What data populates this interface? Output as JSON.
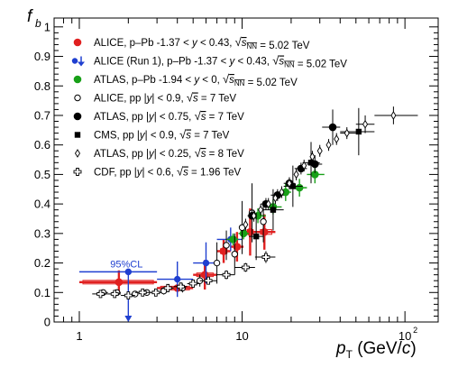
{
  "chart_data": {
    "type": "scatter",
    "xscale": "log",
    "xlim": [
      0.7,
      160
    ],
    "ylim": [
      0,
      1.03
    ],
    "xlabel": {
      "main": "p",
      "sub": "T",
      "unit": " (GeV/",
      "italic": "c",
      "close": ")"
    },
    "ylabel": {
      "main": "f",
      "sub": "b"
    },
    "xticks_major": [
      {
        "value": 1,
        "label": "1"
      },
      {
        "value": 10,
        "label": "10"
      },
      {
        "value": 100,
        "label": "10",
        "sup": "2"
      }
    ],
    "yticks": [
      {
        "value": 0,
        "label": "0"
      },
      {
        "value": 0.1,
        "label": "0.1"
      },
      {
        "value": 0.2,
        "label": "0.2"
      },
      {
        "value": 0.3,
        "label": "0.3"
      },
      {
        "value": 0.4,
        "label": "0.4"
      },
      {
        "value": 0.5,
        "label": "0.5"
      },
      {
        "value": 0.6,
        "label": "0.6"
      },
      {
        "value": 0.7,
        "label": "0.7"
      },
      {
        "value": 0.8,
        "label": "0.8"
      },
      {
        "value": 0.9,
        "label": "0.9"
      },
      {
        "value": 1,
        "label": "1"
      }
    ],
    "annotation": {
      "text": "95%CL"
    },
    "legend": {
      "placement": "top-left",
      "entries": [
        {
          "marker": "filled-circle",
          "color": "#e02020",
          "parts": [
            {
              "t": "ALICE, p–Pb  -1.37 < "
            },
            {
              "t": "y",
              "i": true
            },
            {
              "t": " < 0.43, "
            },
            {
              "t": "√",
              "sqrt": true
            },
            {
              "t": "s",
              "i": true,
              "o": true
            },
            {
              "t": "NN",
              "sub": true,
              "o": true
            },
            {
              "t": " = 5.02 TeV"
            }
          ]
        },
        {
          "marker": "circle-arrow",
          "color": "#1f3fd0",
          "parts": [
            {
              "t": "ALICE (Run 1), p–Pb  -1.37 < "
            },
            {
              "t": "y",
              "i": true
            },
            {
              "t": " < 0.43, "
            },
            {
              "t": "√",
              "sqrt": true
            },
            {
              "t": "s",
              "i": true,
              "o": true
            },
            {
              "t": "NN",
              "sub": true,
              "o": true
            },
            {
              "t": " = 5.02 TeV"
            }
          ]
        },
        {
          "marker": "filled-circle",
          "color": "#18a018",
          "parts": [
            {
              "t": "ATLAS, p–Pb  -1.94 < "
            },
            {
              "t": "y",
              "i": true
            },
            {
              "t": " < 0, "
            },
            {
              "t": "√",
              "sqrt": true
            },
            {
              "t": "s",
              "i": true,
              "o": true
            },
            {
              "t": "NN",
              "sub": true,
              "o": true
            },
            {
              "t": " = 5.02 TeV"
            }
          ]
        },
        {
          "marker": "open-circle",
          "color": "#000000",
          "parts": [
            {
              "t": "ALICE, pp  |"
            },
            {
              "t": "y",
              "i": true
            },
            {
              "t": "| < 0.9, "
            },
            {
              "t": "√",
              "sqrt": true
            },
            {
              "t": "s",
              "i": true,
              "o": true
            },
            {
              "t": " = 7 TeV"
            }
          ]
        },
        {
          "marker": "filled-circle",
          "color": "#000000",
          "parts": [
            {
              "t": "ATLAS, pp  |"
            },
            {
              "t": "y",
              "i": true
            },
            {
              "t": "| < 0.75, "
            },
            {
              "t": "√",
              "sqrt": true
            },
            {
              "t": "s",
              "i": true,
              "o": true
            },
            {
              "t": " = 7 TeV"
            }
          ]
        },
        {
          "marker": "filled-square",
          "color": "#000000",
          "parts": [
            {
              "t": "CMS, pp  |"
            },
            {
              "t": "y",
              "i": true
            },
            {
              "t": "| < 0.9, "
            },
            {
              "t": "√",
              "sqrt": true
            },
            {
              "t": "s",
              "i": true,
              "o": true
            },
            {
              "t": " = 7 TeV"
            }
          ]
        },
        {
          "marker": "open-diamond",
          "color": "#000000",
          "parts": [
            {
              "t": "ATLAS, pp  |"
            },
            {
              "t": "y",
              "i": true
            },
            {
              "t": "| < 0.25, "
            },
            {
              "t": "√",
              "sqrt": true
            },
            {
              "t": "s",
              "i": true,
              "o": true
            },
            {
              "t": " = 8 TeV"
            }
          ]
        },
        {
          "marker": "open-cross",
          "color": "#000000",
          "parts": [
            {
              "t": "CDF, pp  |"
            },
            {
              "t": "y",
              "i": true
            },
            {
              "t": "| < 0.6, "
            },
            {
              "t": "√",
              "sqrt": true
            },
            {
              "t": "s",
              "i": true,
              "o": true
            },
            {
              "t": " = 1.96 TeV"
            }
          ]
        }
      ]
    },
    "series": [
      {
        "marker": "filled-circle",
        "color": "#e02020",
        "points": [
          {
            "x": 1.75,
            "xerr": [
              1.0,
              3.0
            ],
            "y": 0.135,
            "yerr": 0.04,
            "sys": 0.006
          },
          {
            "x": 4.0,
            "xerr": [
              3.0,
              5.0
            ],
            "y": 0.115,
            "yerr": 0.01,
            "sys": 0.006
          },
          {
            "x": 5.9,
            "xerr": [
              5.0,
              7.0
            ],
            "y": 0.16,
            "yerr": 0.05,
            "sys": 0.006
          },
          {
            "x": 7.7,
            "xerr": [
              7.0,
              8.5
            ],
            "y": 0.24,
            "yerr": 0.04,
            "sys": 0.008
          },
          {
            "x": 9.3,
            "xerr": [
              8.5,
              10.2
            ],
            "y": 0.255,
            "yerr": 0.05,
            "sys": 0.008
          },
          {
            "x": 11.2,
            "xerr": [
              10.2,
              12.3
            ],
            "y": 0.305,
            "yerr": 0.08,
            "sys": 0.008
          },
          {
            "x": 13.7,
            "xerr": [
              12.3,
              16.0
            ],
            "y": 0.305,
            "yerr": 0.06,
            "sys": 0.008
          }
        ]
      },
      {
        "marker": "circle-arrow",
        "color": "#1f3fd0",
        "points": [
          {
            "x": 2.0,
            "xerr": [
              1.0,
              3.0
            ],
            "y": 0.17,
            "yerr": 0,
            "limit": 0.0
          },
          {
            "x": 4.0,
            "xerr": [
              3.0,
              5.0
            ],
            "y": 0.145,
            "yerr": 0.06
          },
          {
            "x": 6.0,
            "xerr": [
              5.0,
              7.0
            ],
            "y": 0.2,
            "yerr": 0.07
          },
          {
            "x": 8.5,
            "xerr": [
              7.0,
              10.0
            ],
            "y": 0.28,
            "yerr": 0.04
          }
        ]
      },
      {
        "marker": "filled-circle",
        "color": "#18a018",
        "points": [
          {
            "x": 8.8,
            "xerr": [
              8.0,
              9.5
            ],
            "y": 0.28,
            "yerr": 0.02
          },
          {
            "x": 10.2,
            "xerr": [
              9.5,
              11.0
            ],
            "y": 0.3,
            "yerr": 0.02
          },
          {
            "x": 12.5,
            "xerr": [
              11.0,
              14.0
            ],
            "y": 0.36,
            "yerr": 0.025
          },
          {
            "x": 15.5,
            "xerr": [
              14.0,
              17.5
            ],
            "y": 0.39,
            "yerr": 0.025
          },
          {
            "x": 18.5,
            "xerr": [
              17.5,
              20.0
            ],
            "y": 0.44,
            "yerr": 0.03
          },
          {
            "x": 22.5,
            "xerr": [
              20.0,
              25.0
            ],
            "y": 0.455,
            "yerr": 0.03
          },
          {
            "x": 28.0,
            "xerr": [
              25.0,
              32.0
            ],
            "y": 0.5,
            "yerr": 0.03
          }
        ]
      },
      {
        "marker": "open-circle",
        "color": "#000000",
        "points": [
          {
            "x": 1.4,
            "xerr": [
              1.3,
              1.5
            ],
            "y": 0.1,
            "yerr": 0.01
          },
          {
            "x": 1.7,
            "xerr": [
              1.6,
              1.8
            ],
            "y": 0.1,
            "yerr": 0.01
          },
          {
            "x": 2.2,
            "xerr": [
              2.1,
              2.3
            ],
            "y": 0.095,
            "yerr": 0.01
          },
          {
            "x": 2.6,
            "xerr": [
              2.5,
              2.7
            ],
            "y": 0.1,
            "yerr": 0.01
          },
          {
            "x": 3.3,
            "xerr": [
              3.2,
              3.4
            ],
            "y": 0.105,
            "yerr": 0.012
          },
          {
            "x": 4.3,
            "xerr": [
              4.2,
              4.4
            ],
            "y": 0.115,
            "yerr": 0.015
          },
          {
            "x": 5.5,
            "xerr": [
              5.3,
              5.7
            ],
            "y": 0.14,
            "yerr": 0.02
          },
          {
            "x": 7.0,
            "xerr": [
              6.7,
              7.3
            ],
            "y": 0.2,
            "yerr": 0.07
          },
          {
            "x": 8.0,
            "xerr": [
              7.7,
              8.3
            ],
            "y": 0.26,
            "yerr": 0.05
          },
          {
            "x": 9.0,
            "xerr": [
              8.7,
              9.4
            ],
            "y": 0.23,
            "yerr": 0.07
          },
          {
            "x": 10.0,
            "xerr": [
              9.6,
              10.4
            ],
            "y": 0.32,
            "yerr": 0.09
          },
          {
            "x": 11.5,
            "xerr": [
              11.0,
              12.0
            ],
            "y": 0.37,
            "yerr": 0.1
          },
          {
            "x": 13.5,
            "xerr": [
              13.0,
              14.0
            ],
            "y": 0.34,
            "yerr": 0.07
          }
        ]
      },
      {
        "marker": "filled-circle",
        "color": "#000000",
        "points": [
          {
            "x": 11.5,
            "xerr": [
              10.8,
              12.3
            ],
            "y": 0.36,
            "yerr": 0.02
          },
          {
            "x": 14.0,
            "xerr": [
              13.0,
              15.0
            ],
            "y": 0.4,
            "yerr": 0.02
          },
          {
            "x": 16.5,
            "xerr": [
              15.0,
              18.0
            ],
            "y": 0.43,
            "yerr": 0.02
          },
          {
            "x": 19.5,
            "xerr": [
              18.0,
              21.0
            ],
            "y": 0.47,
            "yerr": 0.02
          },
          {
            "x": 23.0,
            "xerr": [
              21.0,
              25.0
            ],
            "y": 0.52,
            "yerr": 0.02
          },
          {
            "x": 28.0,
            "xerr": [
              25.0,
              31.0
            ],
            "y": 0.535,
            "yerr": 0.03
          },
          {
            "x": 36.0,
            "xerr": [
              31.0,
              40.0
            ],
            "y": 0.66,
            "yerr": 0.06
          }
        ]
      },
      {
        "marker": "filled-square",
        "color": "#000000",
        "points": [
          {
            "x": 12.2,
            "xerr": [
              11.0,
              13.5
            ],
            "y": 0.29,
            "yerr": 0.08
          },
          {
            "x": 15.5,
            "xerr": [
              13.5,
              18.0
            ],
            "y": 0.38,
            "yerr": 0.07
          },
          {
            "x": 20.5,
            "xerr": [
              18.0,
              23.5
            ],
            "y": 0.46,
            "yerr": 0.07
          },
          {
            "x": 26.5,
            "xerr": [
              23.5,
              30.0
            ],
            "y": 0.54,
            "yerr": 0.07
          },
          {
            "x": 52.0,
            "xerr": [
              40.0,
              65.0
            ],
            "y": 0.645,
            "yerr": 0.08
          }
        ]
      },
      {
        "marker": "open-diamond",
        "color": "#000000",
        "points": [
          {
            "x": 10.5,
            "y": 0.33,
            "yerr": 0.02
          },
          {
            "x": 11.8,
            "y": 0.36,
            "yerr": 0.02
          },
          {
            "x": 13.0,
            "y": 0.38,
            "yerr": 0.02
          },
          {
            "x": 14.5,
            "y": 0.4,
            "yerr": 0.02
          },
          {
            "x": 16.0,
            "y": 0.42,
            "yerr": 0.02
          },
          {
            "x": 17.5,
            "y": 0.44,
            "yerr": 0.02
          },
          {
            "x": 19.5,
            "y": 0.47,
            "yerr": 0.02
          },
          {
            "x": 21.5,
            "y": 0.5,
            "yerr": 0.02
          },
          {
            "x": 24.0,
            "y": 0.53,
            "yerr": 0.02
          },
          {
            "x": 27.0,
            "y": 0.56,
            "yerr": 0.02
          },
          {
            "x": 30.0,
            "y": 0.58,
            "yerr": 0.02
          },
          {
            "x": 34.0,
            "y": 0.6,
            "yerr": 0.02
          },
          {
            "x": 38.0,
            "y": 0.62,
            "yerr": 0.02
          },
          {
            "x": 44.0,
            "xerr": [
              40.0,
              50.0
            ],
            "y": 0.64,
            "yerr": 0.02
          },
          {
            "x": 57.0,
            "xerr": [
              50.0,
              65.0
            ],
            "y": 0.67,
            "yerr": 0.03
          },
          {
            "x": 85.0,
            "xerr": [
              65.0,
              120.0
            ],
            "y": 0.7,
            "yerr": 0.03
          }
        ]
      },
      {
        "marker": "open-cross",
        "color": "#000000",
        "points": [
          {
            "x": 1.35,
            "xerr": [
              1.2,
              1.5
            ],
            "y": 0.095,
            "yerr": 0.01
          },
          {
            "x": 1.65,
            "xerr": [
              1.5,
              1.8
            ],
            "y": 0.095,
            "yerr": 0.01
          },
          {
            "x": 2.0,
            "xerr": [
              1.8,
              2.2
            ],
            "y": 0.09,
            "yerr": 0.01
          },
          {
            "x": 2.45,
            "xerr": [
              2.2,
              2.7
            ],
            "y": 0.1,
            "yerr": 0.01
          },
          {
            "x": 2.95,
            "xerr": [
              2.7,
              3.2
            ],
            "y": 0.1,
            "yerr": 0.01
          },
          {
            "x": 3.5,
            "xerr": [
              3.2,
              3.8
            ],
            "y": 0.115,
            "yerr": 0.01
          },
          {
            "x": 4.2,
            "xerr": [
              3.8,
              4.6
            ],
            "y": 0.12,
            "yerr": 0.01
          },
          {
            "x": 5.0,
            "xerr": [
              4.6,
              5.5
            ],
            "y": 0.13,
            "yerr": 0.012
          },
          {
            "x": 6.2,
            "xerr": [
              5.5,
              7.0
            ],
            "y": 0.14,
            "yerr": 0.012
          },
          {
            "x": 8.0,
            "xerr": [
              7.0,
              9.0
            ],
            "y": 0.16,
            "yerr": 0.015
          },
          {
            "x": 10.5,
            "xerr": [
              9.0,
              12.0
            ],
            "y": 0.185,
            "yerr": 0.015
          },
          {
            "x": 14.0,
            "xerr": [
              12.0,
              16.0
            ],
            "y": 0.22,
            "yerr": 0.02
          }
        ]
      }
    ]
  }
}
